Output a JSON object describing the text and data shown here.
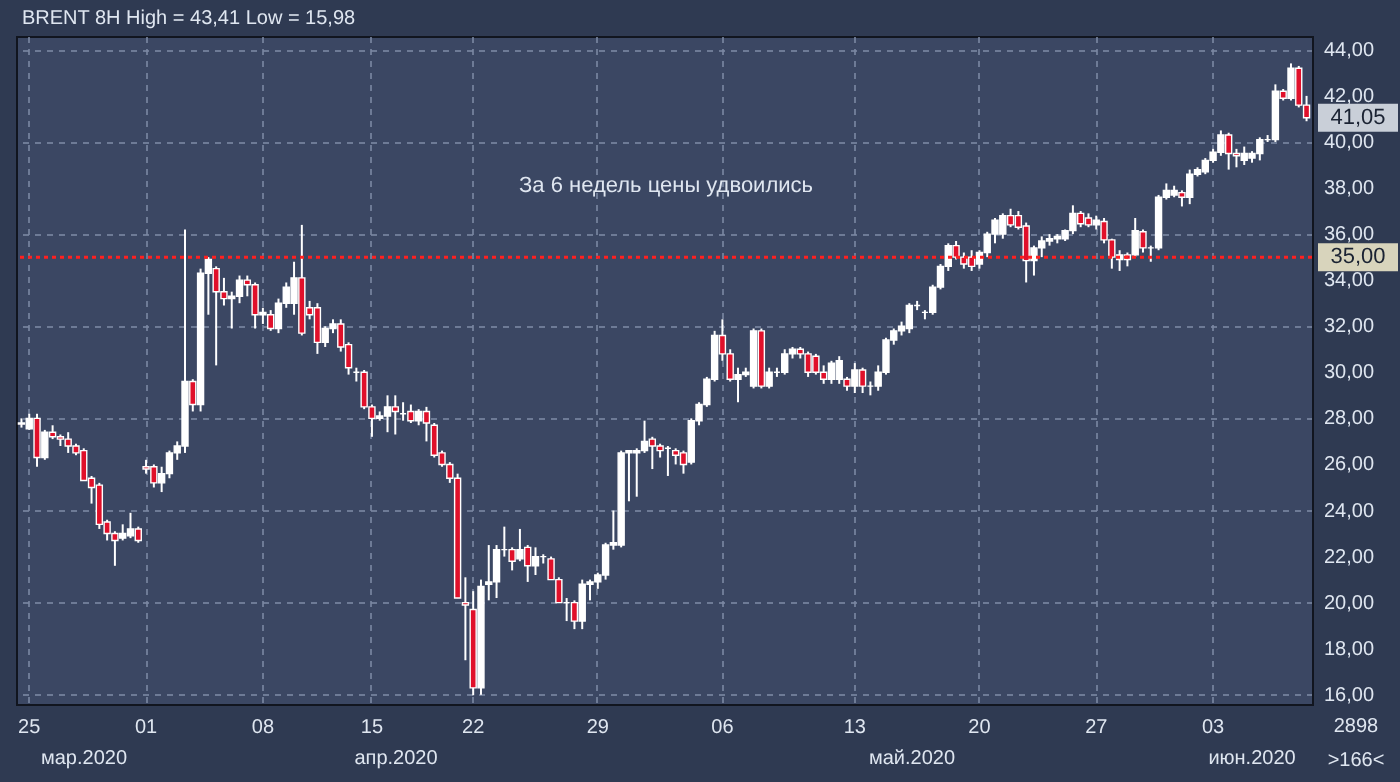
{
  "chart_data": {
    "type": "candlestick",
    "title": "BRENT 8H High = 43,41 Low = 15,98",
    "categories": [
      null,
      "25",
      null,
      null,
      null,
      null,
      null,
      null,
      null,
      null,
      null,
      null,
      null,
      null,
      null,
      null,
      "01",
      null,
      null,
      null,
      null,
      null,
      null,
      null,
      null,
      null,
      null,
      null,
      null,
      null,
      null,
      "08",
      null,
      null,
      null,
      null,
      null,
      null,
      null,
      null,
      null,
      null,
      null,
      null,
      null,
      "15",
      null,
      null,
      null,
      null,
      null,
      null,
      null,
      null,
      null,
      null,
      null,
      null,
      "22",
      null,
      null,
      null,
      null,
      null,
      null,
      null,
      null,
      null,
      null,
      null,
      null,
      null,
      null,
      null,
      "29",
      null,
      null,
      null,
      null,
      null,
      null,
      null,
      null,
      null,
      null,
      null,
      null,
      null,
      null,
      null,
      "06",
      null,
      null,
      null,
      null,
      null,
      null,
      null,
      null,
      null,
      null,
      null,
      null,
      null,
      null,
      null,
      null,
      "13",
      null,
      null,
      null,
      null,
      null,
      null,
      null,
      null,
      null,
      null,
      null,
      null,
      null,
      null,
      null,
      "20",
      null,
      null,
      null,
      null,
      null,
      null,
      null,
      null,
      null,
      null,
      null,
      null,
      null,
      null,
      "27",
      null,
      null,
      null,
      null,
      null,
      null,
      null,
      null,
      null,
      null,
      null,
      null,
      null,
      null,
      "03",
      null,
      null,
      null,
      null,
      null,
      null,
      null,
      null,
      null,
      null,
      null,
      null
    ],
    "ohlc": [
      [
        27.8,
        28.0,
        27.6,
        27.75
      ],
      [
        27.55,
        28.2,
        27.5,
        28.0
      ],
      [
        28.0,
        28.2,
        25.9,
        26.3
      ],
      [
        26.3,
        27.5,
        26.2,
        27.4
      ],
      [
        27.4,
        27.7,
        27.1,
        27.2
      ],
      [
        27.2,
        27.3,
        26.8,
        27.1
      ],
      [
        27.1,
        27.4,
        26.5,
        26.8
      ],
      [
        26.8,
        26.9,
        26.4,
        26.5
      ],
      [
        26.6,
        26.7,
        25.3,
        25.3
      ],
      [
        25.4,
        25.5,
        24.3,
        25.0
      ],
      [
        25.1,
        25.2,
        23.2,
        23.4
      ],
      [
        23.5,
        23.6,
        22.7,
        23.0
      ],
      [
        23.0,
        23.1,
        21.6,
        22.7
      ],
      [
        22.8,
        23.4,
        22.7,
        23.0
      ],
      [
        22.9,
        23.9,
        22.8,
        23.2
      ],
      [
        23.2,
        23.3,
        22.6,
        22.7
      ],
      [
        25.9,
        26.2,
        25.6,
        25.8
      ],
      [
        25.9,
        26.0,
        25.0,
        25.2
      ],
      [
        25.2,
        25.9,
        24.8,
        25.6
      ],
      [
        25.6,
        26.6,
        25.4,
        26.5
      ],
      [
        26.5,
        27.0,
        26.2,
        26.8
      ],
      [
        26.8,
        36.2,
        26.5,
        29.6
      ],
      [
        29.6,
        29.7,
        28.3,
        28.6
      ],
      [
        28.6,
        34.5,
        28.3,
        34.3
      ],
      [
        34.3,
        35.0,
        32.5,
        34.9
      ],
      [
        34.5,
        34.6,
        30.3,
        33.5
      ],
      [
        33.5,
        34.1,
        32.9,
        33.2
      ],
      [
        33.2,
        33.5,
        31.9,
        33.3
      ],
      [
        33.3,
        34.2,
        33.0,
        34.0
      ],
      [
        34.0,
        34.2,
        33.3,
        33.8
      ],
      [
        33.8,
        33.9,
        31.9,
        32.5
      ],
      [
        32.5,
        32.8,
        32.1,
        32.6
      ],
      [
        32.5,
        32.7,
        31.8,
        31.9
      ],
      [
        31.9,
        33.2,
        31.7,
        33.0
      ],
      [
        33.0,
        33.9,
        32.8,
        33.7
      ],
      [
        33.0,
        34.8,
        32.5,
        34.1
      ],
      [
        34.1,
        36.4,
        31.6,
        31.7
      ],
      [
        32.8,
        33.1,
        32.3,
        32.5
      ],
      [
        32.8,
        33.0,
        30.8,
        31.3
      ],
      [
        31.3,
        32.0,
        31.1,
        31.9
      ],
      [
        31.9,
        32.3,
        31.7,
        32.1
      ],
      [
        32.1,
        32.3,
        30.9,
        31.1
      ],
      [
        31.2,
        31.3,
        29.9,
        30.2
      ],
      [
        30.0,
        30.2,
        29.6,
        30.0
      ],
      [
        30.0,
        30.1,
        28.4,
        28.5
      ],
      [
        28.5,
        28.6,
        27.2,
        28.0
      ],
      [
        28.0,
        28.3,
        27.9,
        28.1
      ],
      [
        28.1,
        29.0,
        27.4,
        28.5
      ],
      [
        28.5,
        29.0,
        27.3,
        28.3
      ],
      [
        28.2,
        28.7,
        27.9,
        28.2
      ],
      [
        28.3,
        28.6,
        27.8,
        27.9
      ],
      [
        27.9,
        28.4,
        27.7,
        28.3
      ],
      [
        28.3,
        28.5,
        27.0,
        27.8
      ],
      [
        27.7,
        27.8,
        26.3,
        26.4
      ],
      [
        26.5,
        26.6,
        25.9,
        26.0
      ],
      [
        26.0,
        26.1,
        25.2,
        25.4
      ],
      [
        25.4,
        25.6,
        20.2,
        20.2
      ],
      [
        20.0,
        21.1,
        17.5,
        19.9
      ],
      [
        19.7,
        20.5,
        15.98,
        16.3
      ],
      [
        16.3,
        21.0,
        16.0,
        20.7
      ],
      [
        20.8,
        22.5,
        20.1,
        20.9
      ],
      [
        20.9,
        22.5,
        20.2,
        22.3
      ],
      [
        22.3,
        23.3,
        22.0,
        22.3
      ],
      [
        22.3,
        22.4,
        21.4,
        21.8
      ],
      [
        21.9,
        23.2,
        21.8,
        22.3
      ],
      [
        22.4,
        22.5,
        20.9,
        21.6
      ],
      [
        21.6,
        22.4,
        21.2,
        22.0
      ],
      [
        22.0,
        22.1,
        21.7,
        22.0
      ],
      [
        21.9,
        22.0,
        21.0,
        21.0
      ],
      [
        21.0,
        21.1,
        20.0,
        20.0
      ],
      [
        20.0,
        20.2,
        19.2,
        20.0
      ],
      [
        20.0,
        20.1,
        18.85,
        19.2
      ],
      [
        19.2,
        21.0,
        18.85,
        20.8
      ],
      [
        20.8,
        21.0,
        20.1,
        20.9
      ],
      [
        20.9,
        21.3,
        20.6,
        21.2
      ],
      [
        21.2,
        22.6,
        21.0,
        22.5
      ],
      [
        22.5,
        24.0,
        22.3,
        22.6
      ],
      [
        22.5,
        26.6,
        22.4,
        26.5
      ],
      [
        26.5,
        26.6,
        24.4,
        26.6
      ],
      [
        26.5,
        26.7,
        24.6,
        26.6
      ],
      [
        26.6,
        27.9,
        26.5,
        27.0
      ],
      [
        27.1,
        27.2,
        25.8,
        26.8
      ],
      [
        26.8,
        26.9,
        26.3,
        26.6
      ],
      [
        26.7,
        26.8,
        25.5,
        26.7
      ],
      [
        26.6,
        26.7,
        26.0,
        26.4
      ],
      [
        26.5,
        26.6,
        25.6,
        26.0
      ],
      [
        26.1,
        28.0,
        26.0,
        27.9
      ],
      [
        27.9,
        28.7,
        27.7,
        28.6
      ],
      [
        28.6,
        29.8,
        28.5,
        29.7
      ],
      [
        29.7,
        31.8,
        29.6,
        31.6
      ],
      [
        31.6,
        32.3,
        30.5,
        30.8
      ],
      [
        30.8,
        31.0,
        29.6,
        29.7
      ],
      [
        29.7,
        30.2,
        28.7,
        29.9
      ],
      [
        29.9,
        30.2,
        29.8,
        30.0
      ],
      [
        29.4,
        31.9,
        29.3,
        31.8
      ],
      [
        31.8,
        31.9,
        29.3,
        29.4
      ],
      [
        29.4,
        30.2,
        29.3,
        30.0
      ],
      [
        30.0,
        30.2,
        29.8,
        30.0
      ],
      [
        30.0,
        31.0,
        29.9,
        30.8
      ],
      [
        30.8,
        31.1,
        30.6,
        31.0
      ],
      [
        31.0,
        31.1,
        30.6,
        30.8
      ],
      [
        30.8,
        30.9,
        29.8,
        30.0
      ],
      [
        30.7,
        30.8,
        29.9,
        30.0
      ],
      [
        30.0,
        30.3,
        29.5,
        29.7
      ],
      [
        29.7,
        30.5,
        29.5,
        30.4
      ],
      [
        29.7,
        30.7,
        29.5,
        30.5
      ],
      [
        29.7,
        29.8,
        29.2,
        29.4
      ],
      [
        29.4,
        30.4,
        29.1,
        30.1
      ],
      [
        30.1,
        30.2,
        29.1,
        29.4
      ],
      [
        29.4,
        29.6,
        29.0,
        29.4
      ],
      [
        29.4,
        30.3,
        29.2,
        30.0
      ],
      [
        30.0,
        31.5,
        29.9,
        31.4
      ],
      [
        31.4,
        31.9,
        31.2,
        31.8
      ],
      [
        31.8,
        32.2,
        31.6,
        32.0
      ],
      [
        31.9,
        33.0,
        31.7,
        32.9
      ],
      [
        32.9,
        33.1,
        32.7,
        32.9
      ],
      [
        32.6,
        32.7,
        32.3,
        32.6
      ],
      [
        32.6,
        33.8,
        32.5,
        33.7
      ],
      [
        33.7,
        34.7,
        33.6,
        34.6
      ],
      [
        34.6,
        35.6,
        34.4,
        35.5
      ],
      [
        35.5,
        35.7,
        34.9,
        35.0
      ],
      [
        35.0,
        35.2,
        34.5,
        34.7
      ],
      [
        35.0,
        35.3,
        34.4,
        34.6
      ],
      [
        34.7,
        35.3,
        34.5,
        35.2
      ],
      [
        35.2,
        36.1,
        35.0,
        36.0
      ],
      [
        36.0,
        36.7,
        35.6,
        36.6
      ],
      [
        36.0,
        36.9,
        35.8,
        36.8
      ],
      [
        36.8,
        37.1,
        36.3,
        36.4
      ],
      [
        36.8,
        37.0,
        36.2,
        36.3
      ],
      [
        36.35,
        36.5,
        33.9,
        34.85
      ],
      [
        34.85,
        35.5,
        34.2,
        35.4
      ],
      [
        35.4,
        35.9,
        35.0,
        35.7
      ],
      [
        35.7,
        36.0,
        35.5,
        35.8
      ],
      [
        35.8,
        36.0,
        35.6,
        35.9
      ],
      [
        35.8,
        36.2,
        35.7,
        36.15
      ],
      [
        36.15,
        37.25,
        36.0,
        36.9
      ],
      [
        36.9,
        37.0,
        36.3,
        36.45
      ],
      [
        36.7,
        36.9,
        36.3,
        36.4
      ],
      [
        36.4,
        36.8,
        36.2,
        36.6
      ],
      [
        36.55,
        36.7,
        35.6,
        35.75
      ],
      [
        35.75,
        35.8,
        34.5,
        35.0
      ],
      [
        34.9,
        35.3,
        34.4,
        35.1
      ],
      [
        35.1,
        35.2,
        34.6,
        34.9
      ],
      [
        35.1,
        36.7,
        35.0,
        36.15
      ],
      [
        36.1,
        36.2,
        35.2,
        35.4
      ],
      [
        35.4,
        35.5,
        34.8,
        35.4
      ],
      [
        35.4,
        37.7,
        35.3,
        37.6
      ],
      [
        37.6,
        38.2,
        37.5,
        37.9
      ],
      [
        37.7,
        38.1,
        37.6,
        37.9
      ],
      [
        37.8,
        37.9,
        37.2,
        37.6
      ],
      [
        37.6,
        38.8,
        37.3,
        38.6
      ],
      [
        38.6,
        38.9,
        38.5,
        38.8
      ],
      [
        38.7,
        39.3,
        38.6,
        39.2
      ],
      [
        39.2,
        39.7,
        39.1,
        39.55
      ],
      [
        39.55,
        40.5,
        39.4,
        40.3
      ],
      [
        40.3,
        40.4,
        38.8,
        39.5
      ],
      [
        39.5,
        39.7,
        38.9,
        39.4
      ],
      [
        39.2,
        39.8,
        39.0,
        39.5
      ],
      [
        39.3,
        39.6,
        39.1,
        39.5
      ],
      [
        39.5,
        40.2,
        39.2,
        40.1
      ],
      [
        40.1,
        40.3,
        40.0,
        40.1
      ],
      [
        40.1,
        42.5,
        40.0,
        42.2
      ],
      [
        42.2,
        42.3,
        41.8,
        41.9
      ],
      [
        41.9,
        43.41,
        41.8,
        43.2
      ],
      [
        43.2,
        43.3,
        41.5,
        41.6
      ],
      [
        41.6,
        42.0,
        40.9,
        41.05
      ]
    ],
    "ylim": [
      15.6,
      44.6
    ],
    "yticks": [
      {
        "value": 16,
        "label": "16,00"
      },
      {
        "value": 18,
        "label": "18,00"
      },
      {
        "value": 20,
        "label": "20,00"
      },
      {
        "value": 22,
        "label": "22,00"
      },
      {
        "value": 24,
        "label": "24,00"
      },
      {
        "value": 26,
        "label": "26,00"
      },
      {
        "value": 28,
        "label": "28,00"
      },
      {
        "value": 30,
        "label": "30,00"
      },
      {
        "value": 32,
        "label": "32,00"
      },
      {
        "value": 34,
        "label": "34,00"
      },
      {
        "value": 36,
        "label": "36,00"
      },
      {
        "value": 38,
        "label": "38,00"
      },
      {
        "value": 40,
        "label": "40,00"
      },
      {
        "value": 42,
        "label": "42,00"
      },
      {
        "value": 44,
        "label": "44,00"
      }
    ],
    "grid": true,
    "ref_lines": [
      {
        "axis": "y",
        "value": 35,
        "label": "35,00",
        "color": "#ff2020",
        "line_style": "dotted"
      }
    ],
    "annotations": [
      "За 6 недель цены удвоились",
      "мар.2020",
      "апр.2020",
      "май.2020",
      "июн.2020",
      "2898",
      ">166<",
      {
        "text": "41,05",
        "y": 41.05
      }
    ]
  }
}
